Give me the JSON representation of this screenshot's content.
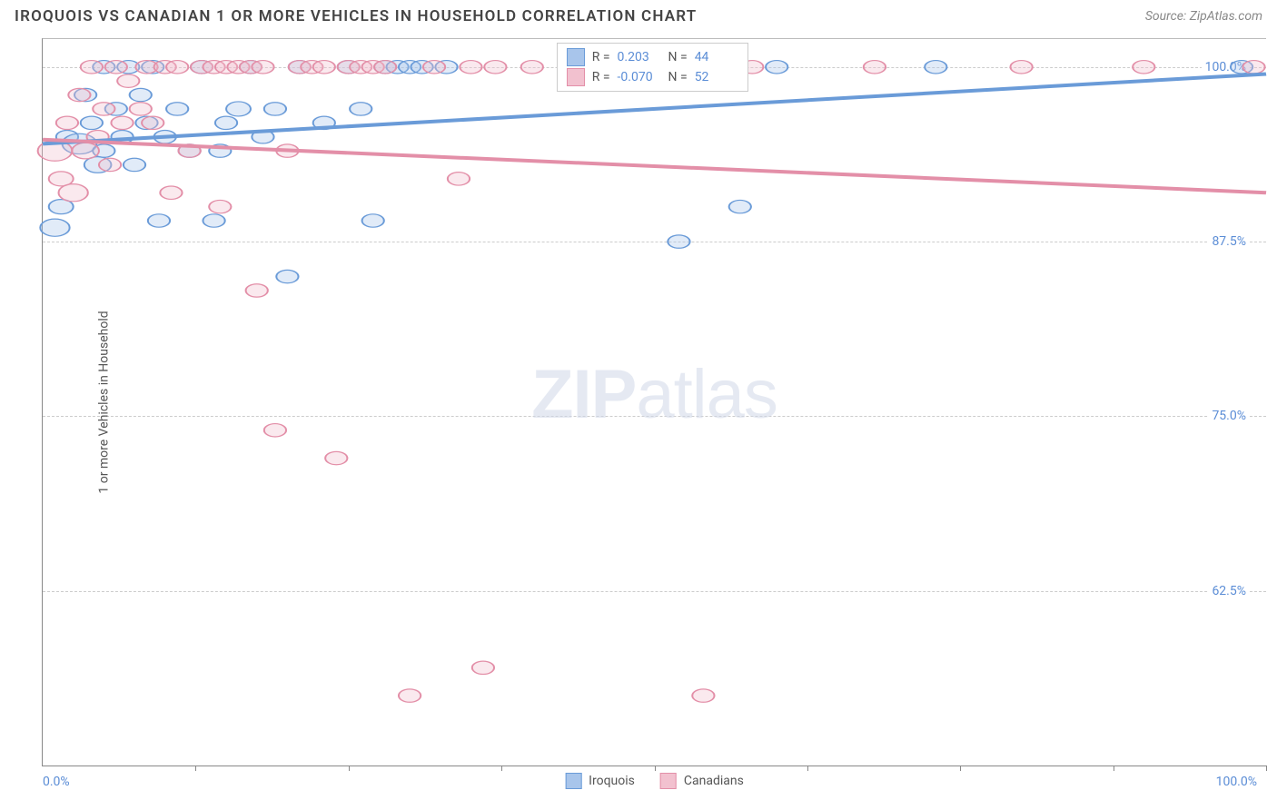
{
  "title": "IROQUOIS VS CANADIAN 1 OR MORE VEHICLES IN HOUSEHOLD CORRELATION CHART",
  "source": "Source: ZipAtlas.com",
  "watermark_bold": "ZIP",
  "watermark_rest": "atlas",
  "ylabel": "1 or more Vehicles in Household",
  "chart": {
    "type": "scatter-correlation",
    "background_color": "#ffffff",
    "grid_color": "#cccccc",
    "axis_color": "#888888",
    "label_color": "#5b8dd6",
    "xlim": [
      0,
      100
    ],
    "ylim": [
      50,
      102
    ],
    "yticks": [
      62.5,
      75.0,
      87.5,
      100.0
    ],
    "ytick_labels": [
      "62.5%",
      "75.0%",
      "87.5%",
      "100.0%"
    ],
    "xtick_positions": [
      12.5,
      25,
      37.5,
      50,
      62.5,
      75,
      87.5,
      100
    ],
    "xaxis_min_label": "0.0%",
    "xaxis_max_label": "100.0%",
    "marker_radius": 9,
    "marker_opacity": 0.35,
    "line_width": 2.5,
    "series": [
      {
        "name": "Iroquois",
        "color_fill": "#a8c5eb",
        "color_stroke": "#6a9bd8",
        "r_value": "0.203",
        "n_value": "44",
        "trend": {
          "y_at_x0": 94.5,
          "y_at_x100": 99.5
        },
        "points": [
          {
            "x": 1,
            "y": 88.5,
            "r": 12
          },
          {
            "x": 1.5,
            "y": 90,
            "r": 10
          },
          {
            "x": 2,
            "y": 95,
            "r": 9
          },
          {
            "x": 3,
            "y": 94.5,
            "r": 14
          },
          {
            "x": 3.5,
            "y": 98,
            "r": 9
          },
          {
            "x": 4,
            "y": 96,
            "r": 9
          },
          {
            "x": 4.5,
            "y": 93,
            "r": 11
          },
          {
            "x": 5,
            "y": 100,
            "r": 9
          },
          {
            "x": 5,
            "y": 94,
            "r": 9
          },
          {
            "x": 6,
            "y": 97,
            "r": 9
          },
          {
            "x": 6.5,
            "y": 95,
            "r": 9
          },
          {
            "x": 7,
            "y": 100,
            "r": 9
          },
          {
            "x": 7.5,
            "y": 93,
            "r": 9
          },
          {
            "x": 8,
            "y": 98,
            "r": 9
          },
          {
            "x": 8.5,
            "y": 96,
            "r": 9
          },
          {
            "x": 9,
            "y": 100,
            "r": 9
          },
          {
            "x": 9.5,
            "y": 89,
            "r": 9
          },
          {
            "x": 10,
            "y": 95,
            "r": 9
          },
          {
            "x": 11,
            "y": 97,
            "r": 9
          },
          {
            "x": 12,
            "y": 94,
            "r": 9
          },
          {
            "x": 13,
            "y": 100,
            "r": 9
          },
          {
            "x": 14,
            "y": 89,
            "r": 9
          },
          {
            "x": 14.5,
            "y": 94,
            "r": 9
          },
          {
            "x": 15,
            "y": 96,
            "r": 9
          },
          {
            "x": 16,
            "y": 97,
            "r": 10
          },
          {
            "x": 17,
            "y": 100,
            "r": 9
          },
          {
            "x": 18,
            "y": 95,
            "r": 9
          },
          {
            "x": 19,
            "y": 97,
            "r": 9
          },
          {
            "x": 20,
            "y": 85,
            "r": 9
          },
          {
            "x": 21,
            "y": 100,
            "r": 9
          },
          {
            "x": 23,
            "y": 96,
            "r": 9
          },
          {
            "x": 25,
            "y": 100,
            "r": 9
          },
          {
            "x": 26,
            "y": 97,
            "r": 9
          },
          {
            "x": 27,
            "y": 89,
            "r": 9
          },
          {
            "x": 28,
            "y": 100,
            "r": 9
          },
          {
            "x": 29,
            "y": 100,
            "r": 9
          },
          {
            "x": 30,
            "y": 100,
            "r": 9
          },
          {
            "x": 31,
            "y": 100,
            "r": 9
          },
          {
            "x": 33,
            "y": 100,
            "r": 9
          },
          {
            "x": 52,
            "y": 87.5,
            "r": 9
          },
          {
            "x": 57,
            "y": 90,
            "r": 9
          },
          {
            "x": 60,
            "y": 100,
            "r": 9
          },
          {
            "x": 73,
            "y": 100,
            "r": 9
          },
          {
            "x": 98,
            "y": 100,
            "r": 9
          }
        ]
      },
      {
        "name": "Canadians",
        "color_fill": "#f2c1cf",
        "color_stroke": "#e38fa8",
        "r_value": "-0.070",
        "n_value": "52",
        "trend": {
          "y_at_x0": 94.8,
          "y_at_x100": 91.0
        },
        "points": [
          {
            "x": 1,
            "y": 94,
            "r": 14
          },
          {
            "x": 1.5,
            "y": 92,
            "r": 10
          },
          {
            "x": 2,
            "y": 96,
            "r": 9
          },
          {
            "x": 2.5,
            "y": 91,
            "r": 12
          },
          {
            "x": 3,
            "y": 98,
            "r": 9
          },
          {
            "x": 3.5,
            "y": 94,
            "r": 11
          },
          {
            "x": 4,
            "y": 100,
            "r": 9
          },
          {
            "x": 4.5,
            "y": 95,
            "r": 9
          },
          {
            "x": 5,
            "y": 97,
            "r": 9
          },
          {
            "x": 5.5,
            "y": 93,
            "r": 9
          },
          {
            "x": 6,
            "y": 100,
            "r": 9
          },
          {
            "x": 6.5,
            "y": 96,
            "r": 9
          },
          {
            "x": 7,
            "y": 99,
            "r": 9
          },
          {
            "x": 8,
            "y": 97,
            "r": 9
          },
          {
            "x": 8.5,
            "y": 100,
            "r": 9
          },
          {
            "x": 9,
            "y": 96,
            "r": 9
          },
          {
            "x": 10,
            "y": 100,
            "r": 9
          },
          {
            "x": 10.5,
            "y": 91,
            "r": 9
          },
          {
            "x": 11,
            "y": 100,
            "r": 9
          },
          {
            "x": 12,
            "y": 94,
            "r": 9
          },
          {
            "x": 13,
            "y": 100,
            "r": 9
          },
          {
            "x": 14,
            "y": 100,
            "r": 9
          },
          {
            "x": 14.5,
            "y": 90,
            "r": 9
          },
          {
            "x": 15,
            "y": 100,
            "r": 9
          },
          {
            "x": 16,
            "y": 100,
            "r": 9
          },
          {
            "x": 17,
            "y": 100,
            "r": 9
          },
          {
            "x": 17.5,
            "y": 84,
            "r": 9
          },
          {
            "x": 18,
            "y": 100,
            "r": 9
          },
          {
            "x": 19,
            "y": 74,
            "r": 9
          },
          {
            "x": 20,
            "y": 94,
            "r": 9
          },
          {
            "x": 21,
            "y": 100,
            "r": 9
          },
          {
            "x": 22,
            "y": 100,
            "r": 9
          },
          {
            "x": 23,
            "y": 100,
            "r": 9
          },
          {
            "x": 24,
            "y": 72,
            "r": 9
          },
          {
            "x": 25,
            "y": 100,
            "r": 9
          },
          {
            "x": 26,
            "y": 100,
            "r": 9
          },
          {
            "x": 27,
            "y": 100,
            "r": 9
          },
          {
            "x": 28,
            "y": 100,
            "r": 9
          },
          {
            "x": 30,
            "y": 55,
            "r": 9
          },
          {
            "x": 32,
            "y": 100,
            "r": 9
          },
          {
            "x": 34,
            "y": 92,
            "r": 9
          },
          {
            "x": 35,
            "y": 100,
            "r": 9
          },
          {
            "x": 36,
            "y": 57,
            "r": 9
          },
          {
            "x": 37,
            "y": 100,
            "r": 9
          },
          {
            "x": 40,
            "y": 100,
            "r": 9
          },
          {
            "x": 50,
            "y": 100,
            "r": 9
          },
          {
            "x": 54,
            "y": 55,
            "r": 9
          },
          {
            "x": 58,
            "y": 100,
            "r": 9
          },
          {
            "x": 68,
            "y": 100,
            "r": 9
          },
          {
            "x": 80,
            "y": 100,
            "r": 9
          },
          {
            "x": 90,
            "y": 100,
            "r": 9
          },
          {
            "x": 99,
            "y": 100,
            "r": 9
          }
        ]
      }
    ],
    "stats_legend": {
      "r_label": "R =",
      "n_label": "N ="
    }
  },
  "bottom_legend": {
    "items": [
      "Iroquois",
      "Canadians"
    ]
  }
}
